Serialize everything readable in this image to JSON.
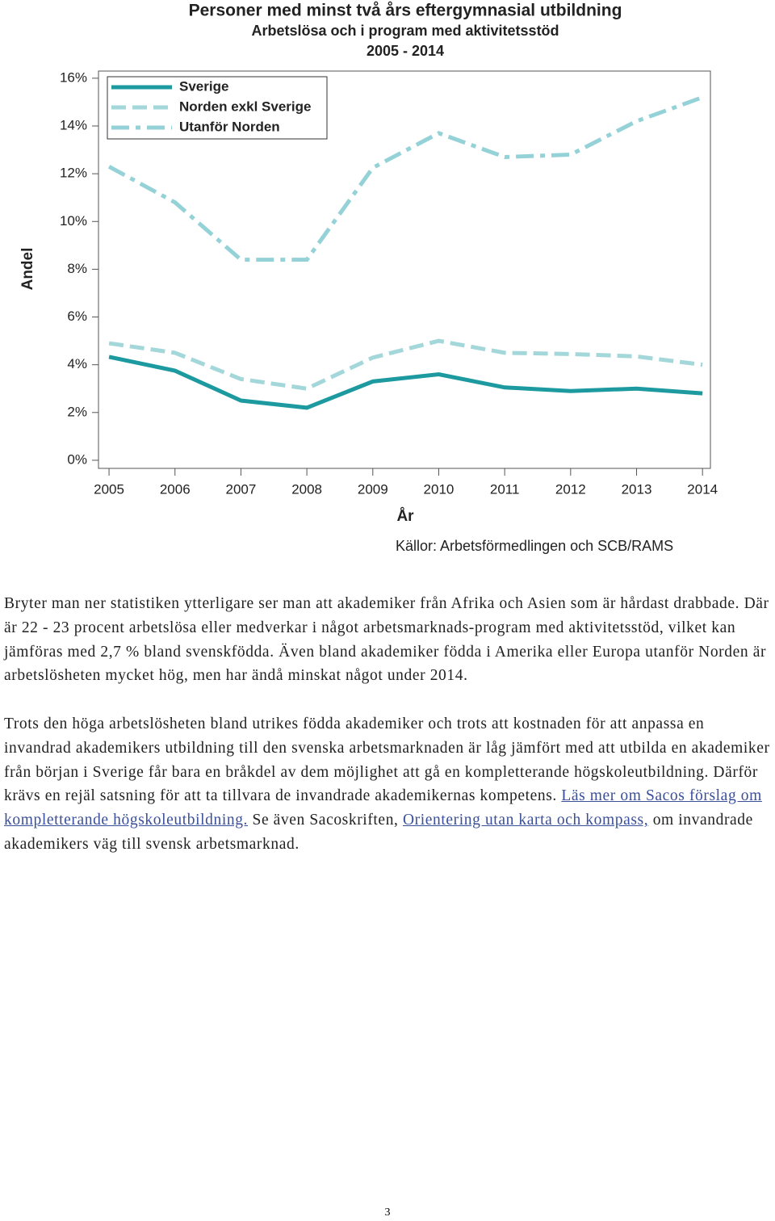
{
  "chart_data": {
    "type": "line",
    "title": "Personer med minst två års eftergymnasial utbildning",
    "subtitle": "Arbetslösa och i program med aktivitetsstöd",
    "period": "2005 - 2014",
    "ylabel": "Andel",
    "xlabel": "År",
    "source": "Källor: Arbetsförmedlingen och SCB/RAMS",
    "x": [
      2005,
      2006,
      2007,
      2008,
      2009,
      2010,
      2011,
      2012,
      2013,
      2014
    ],
    "xlim": [
      2004.84,
      2014.12
    ],
    "xticks": [
      2005,
      2006,
      2007,
      2008,
      2009,
      2010,
      2011,
      2012,
      2013,
      2014
    ],
    "ylim": [
      -0.34,
      16.3
    ],
    "yticks": [
      {
        "value": 0,
        "label": "0%"
      },
      {
        "value": 2,
        "label": "2%"
      },
      {
        "value": 4,
        "label": "4%"
      },
      {
        "value": 6,
        "label": "6%"
      },
      {
        "value": 8,
        "label": "8%"
      },
      {
        "value": 10,
        "label": "10%"
      },
      {
        "value": 12,
        "label": "12%"
      },
      {
        "value": 14,
        "label": "14%"
      },
      {
        "value": 16,
        "label": "16%"
      }
    ],
    "legend": "top-left",
    "series": [
      {
        "name": "Sverige",
        "color": "#1c9aa0",
        "dash": "solid",
        "values": [
          4.33,
          3.75,
          2.5,
          2.2,
          3.3,
          3.6,
          3.05,
          2.9,
          3.0,
          2.8
        ]
      },
      {
        "name": "Norden exkl Sverige",
        "color": "#a3d7da",
        "dash": "dash",
        "values": [
          4.9,
          4.5,
          3.4,
          3.0,
          4.3,
          5.0,
          4.5,
          4.45,
          4.35,
          4.0
        ]
      },
      {
        "name": "Utanför Norden",
        "color": "#95d2d8",
        "dash": "dashdot",
        "values": [
          12.3,
          10.8,
          8.4,
          8.4,
          12.25,
          13.7,
          12.7,
          12.8,
          14.2,
          15.2
        ]
      }
    ]
  },
  "paragraphs": [
    "Bryter man ner statistiken ytterligare ser man att akademiker från Afrika och Asien som är hårdast drabbade. Där är 22 - 23 procent arbetslösa eller medverkar i något arbetsmarknads-program med aktivitetsstöd, vilket kan jämföras med 2,7 % bland svenskfödda. Även bland akademiker födda i Amerika eller Europa utanför Norden är arbetslösheten mycket hög, men har ändå minskat något under 2014.",
    [
      {
        "text": "Trots den höga arbetslösheten bland utrikes födda akademiker och trots att kostnaden för att anpassa en invandrad akademikers utbildning till den svenska arbetsmarknaden är låg jämfört med att utbilda en akademiker från början i Sverige får bara en bråkdel av dem möjlighet att gå en kompletterande högskoleutbildning. Därför krävs en rejäl satsning för att ta tillvara de invandrade akademikernas kompetens. "
      },
      {
        "link": "Läs mer om Sacos förslag om kompletterande högskoleutbildning."
      },
      {
        "text": " Se även Sacoskriften, "
      },
      {
        "link": "Orientering utan karta och kompass,"
      },
      {
        "text": " om invandrade akademikers väg till svensk arbetsmarknad."
      }
    ]
  ],
  "page_number": "3"
}
